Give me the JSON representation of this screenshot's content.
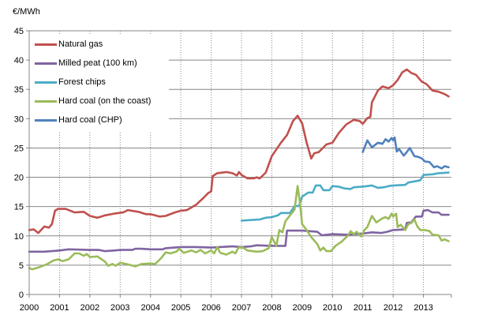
{
  "chart_data": {
    "type": "line",
    "title": "",
    "ylabel": "€/MWh",
    "xlabel": "",
    "ylim": [
      0,
      45
    ],
    "xlim": [
      2000,
      2013.92
    ],
    "yticks": [
      "0",
      "5",
      "10",
      "15",
      "20",
      "25",
      "30",
      "35",
      "40",
      "45"
    ],
    "xticks": [
      "2000",
      "2001",
      "2002",
      "2003",
      "2004",
      "2005",
      "2006",
      "2007",
      "2008",
      "2009",
      "2010",
      "2011",
      "2012",
      "2013"
    ],
    "grid": {
      "horizontal": "solid",
      "vertical": "dotted"
    },
    "legend_position": "top-left",
    "series": [
      {
        "name": "Natural gas",
        "color": "#C0504D",
        "points": [
          [
            2000.0,
            11.0
          ],
          [
            2000.15,
            11.1
          ],
          [
            2000.3,
            10.5
          ],
          [
            2000.5,
            11.6
          ],
          [
            2000.65,
            11.4
          ],
          [
            2000.75,
            12.0
          ],
          [
            2000.85,
            14.3
          ],
          [
            2000.95,
            14.6
          ],
          [
            2001.2,
            14.6
          ],
          [
            2001.5,
            14.0
          ],
          [
            2001.8,
            14.1
          ],
          [
            2002.0,
            13.4
          ],
          [
            2002.25,
            13.1
          ],
          [
            2002.5,
            13.5
          ],
          [
            2002.8,
            13.8
          ],
          [
            2003.1,
            14.0
          ],
          [
            2003.25,
            14.4
          ],
          [
            2003.6,
            14.1
          ],
          [
            2003.85,
            13.7
          ],
          [
            2004.0,
            13.7
          ],
          [
            2004.3,
            13.3
          ],
          [
            2004.5,
            13.4
          ],
          [
            2004.8,
            14.0
          ],
          [
            2005.0,
            14.3
          ],
          [
            2005.2,
            14.4
          ],
          [
            2005.5,
            15.3
          ],
          [
            2005.75,
            16.5
          ],
          [
            2005.9,
            17.3
          ],
          [
            2006.0,
            17.6
          ],
          [
            2006.05,
            20.2
          ],
          [
            2006.2,
            20.7
          ],
          [
            2006.5,
            20.9
          ],
          [
            2006.7,
            20.7
          ],
          [
            2006.85,
            20.3
          ],
          [
            2006.92,
            20.9
          ],
          [
            2007.0,
            20.4
          ],
          [
            2007.2,
            19.8
          ],
          [
            2007.4,
            19.8
          ],
          [
            2007.5,
            20.0
          ],
          [
            2007.6,
            19.8
          ],
          [
            2007.8,
            20.8
          ],
          [
            2008.0,
            23.6
          ],
          [
            2008.3,
            25.9
          ],
          [
            2008.5,
            27.2
          ],
          [
            2008.7,
            29.6
          ],
          [
            2008.85,
            30.5
          ],
          [
            2009.0,
            29.2
          ],
          [
            2009.15,
            25.9
          ],
          [
            2009.3,
            23.2
          ],
          [
            2009.4,
            24.1
          ],
          [
            2009.55,
            24.3
          ],
          [
            2009.8,
            25.6
          ],
          [
            2010.0,
            25.9
          ],
          [
            2010.2,
            27.5
          ],
          [
            2010.45,
            29.0
          ],
          [
            2010.7,
            29.8
          ],
          [
            2010.9,
            29.6
          ],
          [
            2011.0,
            29.1
          ],
          [
            2011.15,
            30.1
          ],
          [
            2011.25,
            30.3
          ],
          [
            2011.3,
            32.8
          ],
          [
            2011.5,
            34.8
          ],
          [
            2011.65,
            35.5
          ],
          [
            2011.85,
            35.2
          ],
          [
            2012.0,
            35.7
          ],
          [
            2012.15,
            36.6
          ],
          [
            2012.3,
            37.9
          ],
          [
            2012.45,
            38.4
          ],
          [
            2012.6,
            37.8
          ],
          [
            2012.75,
            37.5
          ],
          [
            2012.95,
            36.3
          ],
          [
            2013.1,
            35.9
          ],
          [
            2013.3,
            34.8
          ],
          [
            2013.5,
            34.6
          ],
          [
            2013.7,
            34.2
          ],
          [
            2013.83,
            33.8
          ]
        ]
      },
      {
        "name": "Milled peat (100 km)",
        "color": "#8064A2",
        "points": [
          [
            2000.0,
            7.3
          ],
          [
            2000.5,
            7.3
          ],
          [
            2001.0,
            7.5
          ],
          [
            2001.3,
            7.7
          ],
          [
            2002.0,
            7.6
          ],
          [
            2002.3,
            7.6
          ],
          [
            2002.5,
            7.4
          ],
          [
            2002.8,
            7.5
          ],
          [
            2003.0,
            7.6
          ],
          [
            2003.4,
            7.6
          ],
          [
            2003.5,
            7.8
          ],
          [
            2003.7,
            7.8
          ],
          [
            2004.0,
            7.7
          ],
          [
            2004.4,
            7.7
          ],
          [
            2004.5,
            7.9
          ],
          [
            2005.0,
            8.1
          ],
          [
            2005.5,
            8.1
          ],
          [
            2006.0,
            8.0
          ],
          [
            2006.7,
            8.2
          ],
          [
            2007.0,
            8.1
          ],
          [
            2007.3,
            8.2
          ],
          [
            2007.5,
            8.4
          ],
          [
            2008.0,
            8.3
          ],
          [
            2008.45,
            8.3
          ],
          [
            2008.5,
            10.9
          ],
          [
            2009.0,
            10.9
          ],
          [
            2009.5,
            10.7
          ],
          [
            2009.65,
            10.1
          ],
          [
            2010.0,
            10.3
          ],
          [
            2010.5,
            10.2
          ],
          [
            2011.0,
            10.4
          ],
          [
            2011.3,
            10.6
          ],
          [
            2011.6,
            10.5
          ],
          [
            2011.8,
            10.7
          ],
          [
            2012.0,
            11.0
          ],
          [
            2012.4,
            11.1
          ],
          [
            2012.45,
            12.2
          ],
          [
            2012.6,
            12.3
          ],
          [
            2012.75,
            13.3
          ],
          [
            2012.95,
            13.3
          ],
          [
            2013.0,
            14.3
          ],
          [
            2013.15,
            14.4
          ],
          [
            2013.3,
            14.0
          ],
          [
            2013.5,
            14.0
          ],
          [
            2013.6,
            13.6
          ],
          [
            2013.83,
            13.6
          ]
        ]
      },
      {
        "name": "Forest chips",
        "color": "#4BACC6",
        "points": [
          [
            2007.0,
            12.6
          ],
          [
            2007.3,
            12.7
          ],
          [
            2007.6,
            12.8
          ],
          [
            2007.8,
            13.1
          ],
          [
            2008.0,
            13.2
          ],
          [
            2008.2,
            13.5
          ],
          [
            2008.3,
            13.9
          ],
          [
            2008.6,
            13.9
          ],
          [
            2008.75,
            15.1
          ],
          [
            2008.9,
            15.1
          ],
          [
            2009.0,
            16.7
          ],
          [
            2009.2,
            17.4
          ],
          [
            2009.35,
            17.4
          ],
          [
            2009.45,
            18.6
          ],
          [
            2009.6,
            18.6
          ],
          [
            2009.7,
            17.8
          ],
          [
            2009.9,
            17.8
          ],
          [
            2010.0,
            18.5
          ],
          [
            2010.2,
            18.4
          ],
          [
            2010.4,
            18.1
          ],
          [
            2010.6,
            18.0
          ],
          [
            2010.7,
            18.3
          ],
          [
            2011.0,
            18.4
          ],
          [
            2011.3,
            18.6
          ],
          [
            2011.5,
            18.2
          ],
          [
            2011.7,
            18.3
          ],
          [
            2011.85,
            18.5
          ],
          [
            2012.0,
            18.6
          ],
          [
            2012.4,
            18.7
          ],
          [
            2012.5,
            19.1
          ],
          [
            2012.7,
            19.3
          ],
          [
            2012.9,
            19.5
          ],
          [
            2013.0,
            20.4
          ],
          [
            2013.3,
            20.5
          ],
          [
            2013.5,
            20.7
          ],
          [
            2013.83,
            20.8
          ]
        ]
      },
      {
        "name": "Hard coal (on the coast)",
        "color": "#9BBB59",
        "points": [
          [
            2000.0,
            4.5
          ],
          [
            2000.1,
            4.3
          ],
          [
            2000.3,
            4.6
          ],
          [
            2000.6,
            5.2
          ],
          [
            2000.8,
            5.8
          ],
          [
            2000.95,
            6.0
          ],
          [
            2001.1,
            5.7
          ],
          [
            2001.3,
            6.0
          ],
          [
            2001.5,
            7.0
          ],
          [
            2001.65,
            7.0
          ],
          [
            2001.8,
            6.6
          ],
          [
            2001.9,
            6.9
          ],
          [
            2002.0,
            6.4
          ],
          [
            2002.25,
            6.5
          ],
          [
            2002.5,
            5.6
          ],
          [
            2002.6,
            4.9
          ],
          [
            2002.75,
            5.2
          ],
          [
            2002.85,
            4.9
          ],
          [
            2003.0,
            5.4
          ],
          [
            2003.2,
            5.2
          ],
          [
            2003.5,
            4.8
          ],
          [
            2003.7,
            5.2
          ],
          [
            2004.0,
            5.3
          ],
          [
            2004.15,
            5.2
          ],
          [
            2004.35,
            6.2
          ],
          [
            2004.5,
            7.2
          ],
          [
            2004.65,
            7.0
          ],
          [
            2004.85,
            7.3
          ],
          [
            2004.95,
            7.8
          ],
          [
            2005.1,
            7.1
          ],
          [
            2005.35,
            7.5
          ],
          [
            2005.5,
            7.2
          ],
          [
            2005.65,
            7.6
          ],
          [
            2005.8,
            7.0
          ],
          [
            2006.0,
            7.5
          ],
          [
            2006.1,
            7.0
          ],
          [
            2006.2,
            8.1
          ],
          [
            2006.3,
            7.1
          ],
          [
            2006.5,
            6.8
          ],
          [
            2006.7,
            7.3
          ],
          [
            2006.8,
            7.0
          ],
          [
            2006.9,
            8.0
          ],
          [
            2007.05,
            8.0
          ],
          [
            2007.2,
            7.5
          ],
          [
            2007.5,
            7.3
          ],
          [
            2007.7,
            7.4
          ],
          [
            2007.9,
            7.9
          ],
          [
            2008.0,
            9.8
          ],
          [
            2008.15,
            8.3
          ],
          [
            2008.25,
            11.0
          ],
          [
            2008.35,
            10.6
          ],
          [
            2008.45,
            12.5
          ],
          [
            2008.6,
            13.5
          ],
          [
            2008.75,
            14.5
          ],
          [
            2008.85,
            18.5
          ],
          [
            2008.92,
            16.0
          ],
          [
            2009.0,
            12.0
          ],
          [
            2009.15,
            11.0
          ],
          [
            2009.3,
            9.8
          ],
          [
            2009.5,
            8.6
          ],
          [
            2009.6,
            7.5
          ],
          [
            2009.7,
            8.0
          ],
          [
            2009.8,
            7.4
          ],
          [
            2009.95,
            7.4
          ],
          [
            2010.1,
            8.3
          ],
          [
            2010.3,
            9.0
          ],
          [
            2010.5,
            10.0
          ],
          [
            2010.6,
            10.8
          ],
          [
            2010.7,
            10.3
          ],
          [
            2010.8,
            10.7
          ],
          [
            2010.95,
            9.9
          ],
          [
            2011.05,
            11.0
          ],
          [
            2011.15,
            11.5
          ],
          [
            2011.3,
            13.4
          ],
          [
            2011.45,
            12.3
          ],
          [
            2011.65,
            13.0
          ],
          [
            2011.75,
            13.2
          ],
          [
            2011.85,
            12.9
          ],
          [
            2011.95,
            13.8
          ],
          [
            2012.0,
            13.3
          ],
          [
            2012.1,
            13.8
          ],
          [
            2012.15,
            11.5
          ],
          [
            2012.25,
            11.9
          ],
          [
            2012.4,
            11.0
          ],
          [
            2012.5,
            12.0
          ],
          [
            2012.6,
            12.2
          ],
          [
            2012.7,
            12.8
          ],
          [
            2012.8,
            11.6
          ],
          [
            2012.9,
            11.0
          ],
          [
            2013.05,
            11.0
          ],
          [
            2013.2,
            10.8
          ],
          [
            2013.3,
            10.2
          ],
          [
            2013.5,
            10.1
          ],
          [
            2013.6,
            9.2
          ],
          [
            2013.7,
            9.4
          ],
          [
            2013.83,
            9.1
          ]
        ]
      },
      {
        "name": "Hard coal (CHP)",
        "color": "#4F81BD",
        "points": [
          [
            2011.0,
            24.3
          ],
          [
            2011.15,
            26.3
          ],
          [
            2011.3,
            25.1
          ],
          [
            2011.5,
            25.9
          ],
          [
            2011.65,
            25.7
          ],
          [
            2011.75,
            26.5
          ],
          [
            2011.85,
            26.1
          ],
          [
            2011.95,
            26.7
          ],
          [
            2012.0,
            26.3
          ],
          [
            2012.05,
            26.8
          ],
          [
            2012.12,
            24.4
          ],
          [
            2012.2,
            24.8
          ],
          [
            2012.35,
            23.7
          ],
          [
            2012.45,
            24.3
          ],
          [
            2012.55,
            25.0
          ],
          [
            2012.7,
            23.6
          ],
          [
            2012.82,
            23.5
          ],
          [
            2012.95,
            23.2
          ],
          [
            2013.05,
            22.7
          ],
          [
            2013.2,
            22.6
          ],
          [
            2013.35,
            21.7
          ],
          [
            2013.45,
            21.9
          ],
          [
            2013.6,
            21.5
          ],
          [
            2013.7,
            21.9
          ],
          [
            2013.83,
            21.7
          ]
        ]
      }
    ]
  }
}
